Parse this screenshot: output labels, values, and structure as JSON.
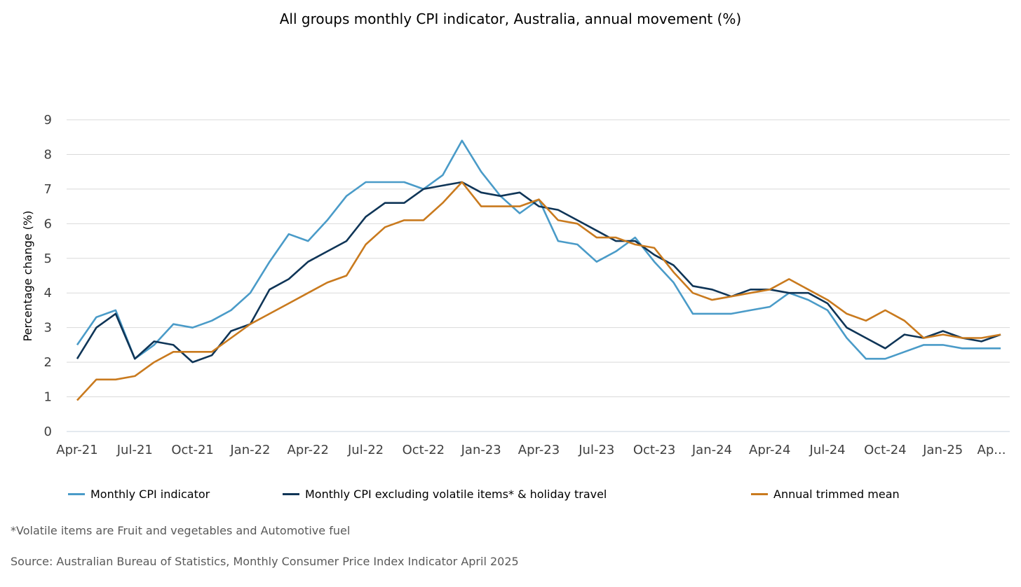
{
  "chart_data": {
    "type": "line",
    "title": "All groups monthly CPI indicator, Australia, annual movement (%)",
    "xlabel": "",
    "ylabel": "Percentage change (%)",
    "ylim": [
      0,
      9
    ],
    "yticks": [
      "0",
      "1",
      "2",
      "3",
      "4",
      "5",
      "6",
      "7",
      "8",
      "9"
    ],
    "grid": true,
    "legend_position": "bottom",
    "x": [
      "Apr-21",
      "May-21",
      "Jun-21",
      "Jul-21",
      "Aug-21",
      "Sep-21",
      "Oct-21",
      "Nov-21",
      "Dec-21",
      "Jan-22",
      "Feb-22",
      "Mar-22",
      "Apr-22",
      "May-22",
      "Jun-22",
      "Jul-22",
      "Aug-22",
      "Sep-22",
      "Oct-22",
      "Nov-22",
      "Dec-22",
      "Jan-23",
      "Feb-23",
      "Mar-23",
      "Apr-23",
      "May-23",
      "Jun-23",
      "Jul-23",
      "Aug-23",
      "Sep-23",
      "Oct-23",
      "Nov-23",
      "Dec-23",
      "Jan-24",
      "Feb-24",
      "Mar-24",
      "Apr-24",
      "May-24",
      "Jun-24",
      "Jul-24",
      "Aug-24",
      "Sep-24",
      "Oct-24",
      "Nov-24",
      "Dec-24",
      "Jan-25",
      "Feb-25",
      "Mar-25",
      "Apr-25"
    ],
    "xtick_labels": [
      {
        "index": 0,
        "label": "Apr-21"
      },
      {
        "index": 3,
        "label": "Jul-21"
      },
      {
        "index": 6,
        "label": "Oct-21"
      },
      {
        "index": 9,
        "label": "Jan-22"
      },
      {
        "index": 12,
        "label": "Apr-22"
      },
      {
        "index": 15,
        "label": "Jul-22"
      },
      {
        "index": 18,
        "label": "Oct-22"
      },
      {
        "index": 21,
        "label": "Jan-23"
      },
      {
        "index": 24,
        "label": "Apr-23"
      },
      {
        "index": 27,
        "label": "Jul-23"
      },
      {
        "index": 30,
        "label": "Oct-23"
      },
      {
        "index": 33,
        "label": "Jan-24"
      },
      {
        "index": 36,
        "label": "Apr-24"
      },
      {
        "index": 39,
        "label": "Jul-24"
      },
      {
        "index": 42,
        "label": "Oct-24"
      },
      {
        "index": 45,
        "label": "Jan-25"
      },
      {
        "index": 48,
        "label": "Ap..."
      }
    ],
    "series": [
      {
        "name": "Monthly CPI indicator",
        "color": "#4a9bc8",
        "values": [
          2.5,
          3.3,
          3.5,
          2.1,
          2.5,
          3.1,
          3.0,
          3.2,
          3.5,
          4.0,
          4.9,
          5.7,
          5.5,
          6.1,
          6.8,
          7.2,
          7.2,
          7.2,
          7.0,
          7.4,
          8.4,
          7.5,
          6.8,
          6.3,
          6.7,
          5.5,
          5.4,
          4.9,
          5.2,
          5.6,
          4.9,
          4.3,
          3.4,
          3.4,
          3.4,
          3.5,
          3.6,
          4.0,
          3.8,
          3.5,
          2.7,
          2.1,
          2.1,
          2.3,
          2.5,
          2.5,
          2.4,
          2.4,
          2.4
        ]
      },
      {
        "name": "Monthly CPI excluding volatile items* & holiday travel",
        "color": "#0f3557",
        "values": [
          2.1,
          3.0,
          3.4,
          2.1,
          2.6,
          2.5,
          2.0,
          2.2,
          2.9,
          3.1,
          4.1,
          4.4,
          4.9,
          5.2,
          5.5,
          6.2,
          6.6,
          6.6,
          7.0,
          7.1,
          7.2,
          6.9,
          6.8,
          6.9,
          6.5,
          6.4,
          6.1,
          5.8,
          5.5,
          5.5,
          5.1,
          4.8,
          4.2,
          4.1,
          3.9,
          4.1,
          4.1,
          4.0,
          4.0,
          3.7,
          3.0,
          2.7,
          2.4,
          2.8,
          2.7,
          2.9,
          2.7,
          2.6,
          2.8
        ]
      },
      {
        "name": "Annual trimmed mean",
        "color": "#c97a1e",
        "values": [
          0.9,
          1.5,
          1.5,
          1.6,
          2.0,
          2.3,
          2.3,
          2.3,
          2.7,
          3.1,
          3.4,
          3.7,
          4.0,
          4.3,
          4.5,
          5.4,
          5.9,
          6.1,
          6.1,
          6.6,
          7.2,
          6.5,
          6.5,
          6.5,
          6.7,
          6.1,
          6.0,
          5.6,
          5.6,
          5.4,
          5.3,
          4.6,
          4.0,
          3.8,
          3.9,
          4.0,
          4.1,
          4.4,
          4.1,
          3.8,
          3.4,
          3.2,
          3.5,
          3.2,
          2.7,
          2.8,
          2.7,
          2.7,
          2.8
        ]
      }
    ]
  },
  "footnotes": {
    "volatile_note": "*Volatile items are Fruit and vegetables and Automotive fuel",
    "source": "Source: Australian Bureau of Statistics, Monthly Consumer Price Index Indicator April 2025"
  }
}
